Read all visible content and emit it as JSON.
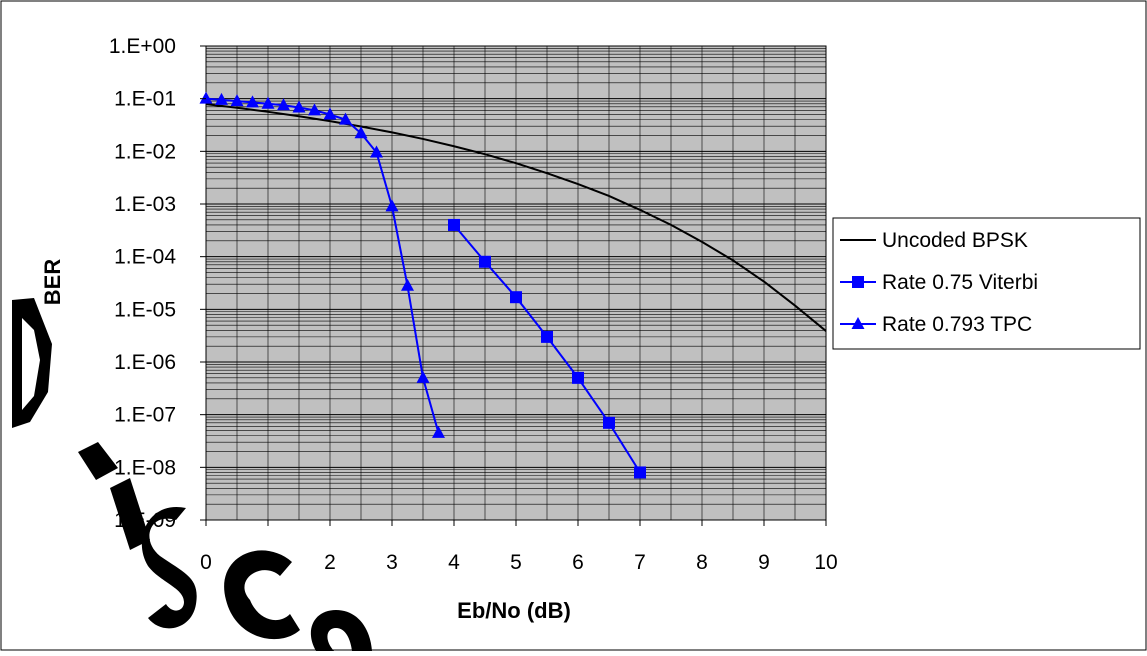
{
  "chart_data": {
    "type": "line",
    "title": "",
    "xlabel": "Eb/No (dB)",
    "ylabel": "BER",
    "xlim": [
      0,
      10
    ],
    "ylim": [
      1e-09,
      1
    ],
    "y_scale": "log",
    "x_ticks": [
      "0",
      "1",
      "2",
      "3",
      "4",
      "5",
      "6",
      "7",
      "8",
      "9",
      "10"
    ],
    "x_tick_values": [
      0,
      1,
      2,
      3,
      4,
      5,
      6,
      7,
      8,
      9,
      10
    ],
    "y_ticks": [
      "1.E+00",
      "1.E-01",
      "1.E-02",
      "1.E-03",
      "1.E-04",
      "1.E-05",
      "1.E-06",
      "1.E-07",
      "1.E-08",
      "1.E-09"
    ],
    "y_tick_values": [
      1,
      0.1,
      0.01,
      0.001,
      0.0001,
      1e-05,
      1e-06,
      1e-07,
      1e-08,
      1e-09
    ],
    "grid": true,
    "plot_background": "#c0c0c0",
    "legend_position": "right",
    "series": [
      {
        "name": "Uncoded BPSK",
        "color": "#000000",
        "marker": "none",
        "x": [
          0,
          0.5,
          1,
          1.5,
          2,
          2.5,
          3,
          3.5,
          4,
          4.5,
          5,
          5.5,
          6,
          6.5,
          7,
          7.5,
          8,
          8.5,
          9,
          9.5,
          10
        ],
        "y": [
          0.0786,
          0.0671,
          0.0563,
          0.0464,
          0.0375,
          0.0296,
          0.0229,
          0.0172,
          0.0125,
          0.00882,
          0.00595,
          0.00384,
          0.00239,
          0.00142,
          0.000773,
          0.000401,
          0.000191,
          8.5e-05,
          3.36e-05,
          1.18e-05,
          3.87e-06
        ]
      },
      {
        "name": "Rate 0.75 Viterbi",
        "color": "#0000ff",
        "marker": "square",
        "x": [
          4,
          4.5,
          5,
          5.5,
          6,
          6.5,
          7
        ],
        "y": [
          0.0004,
          8e-05,
          1.7e-05,
          3e-06,
          5e-07,
          7e-08,
          8e-09
        ]
      },
      {
        "name": "Rate 0.793 TPC",
        "color": "#0000ff",
        "marker": "triangle",
        "x": [
          0,
          0.25,
          0.5,
          0.75,
          1,
          1.25,
          1.5,
          1.75,
          2,
          2.25,
          2.5,
          2.75,
          3,
          3.25,
          3.5,
          3.75
        ],
        "y": [
          0.1,
          0.095,
          0.09,
          0.085,
          0.08,
          0.075,
          0.068,
          0.06,
          0.05,
          0.04,
          0.022,
          0.0095,
          0.0009,
          2.8e-05,
          5e-07,
          4.5e-08
        ]
      }
    ]
  },
  "watermark_text": "Disco"
}
